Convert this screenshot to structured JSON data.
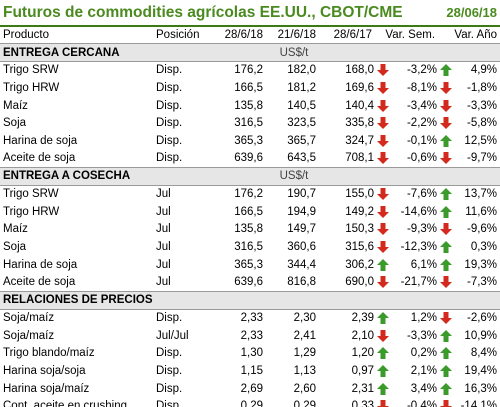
{
  "header": {
    "title": "Futuros de commodities agrícolas EE.UU., CBOT/CME",
    "date": "28/06/18"
  },
  "columns": {
    "product": "Producto",
    "position": "Posición",
    "d1": "28/6/18",
    "d2": "21/6/18",
    "d3": "28/6/17",
    "var_sem": "Var. Sem.",
    "var_ano": "Var. Año"
  },
  "colors": {
    "up": "#3a9a2a",
    "down": "#d42a1e",
    "title": "#4a8a1e"
  },
  "sections": [
    {
      "label": "ENTREGA CERCANA",
      "unit": "US$/t",
      "rows": [
        {
          "name": "Trigo SRW",
          "pos": "Disp.",
          "v1": "176,2",
          "v2": "182,0",
          "v3": "168,0",
          "a1": "down",
          "vs": "-3,2%",
          "a2": "up",
          "va": "4,9%"
        },
        {
          "name": "Trigo HRW",
          "pos": "Disp.",
          "v1": "166,5",
          "v2": "181,2",
          "v3": "169,6",
          "a1": "down",
          "vs": "-8,1%",
          "a2": "down",
          "va": "-1,8%"
        },
        {
          "name": "Maíz",
          "pos": "Disp.",
          "v1": "135,8",
          "v2": "140,5",
          "v3": "140,4",
          "a1": "down",
          "vs": "-3,4%",
          "a2": "down",
          "va": "-3,3%"
        },
        {
          "name": "Soja",
          "pos": "Disp.",
          "v1": "316,5",
          "v2": "323,5",
          "v3": "335,8",
          "a1": "down",
          "vs": "-2,2%",
          "a2": "down",
          "va": "-5,8%"
        },
        {
          "name": "Harina de soja",
          "pos": "Disp.",
          "v1": "365,3",
          "v2": "365,7",
          "v3": "324,7",
          "a1": "down",
          "vs": "-0,1%",
          "a2": "up",
          "va": "12,5%"
        },
        {
          "name": "Aceite de soja",
          "pos": "Disp.",
          "v1": "639,6",
          "v2": "643,5",
          "v3": "708,1",
          "a1": "down",
          "vs": "-0,6%",
          "a2": "down",
          "va": "-9,7%"
        }
      ]
    },
    {
      "label": "ENTREGA A COSECHA",
      "unit": "US$/t",
      "rows": [
        {
          "name": "Trigo SRW",
          "pos": "Jul",
          "v1": "176,2",
          "v2": "190,7",
          "v3": "155,0",
          "a1": "down",
          "vs": "-7,6%",
          "a2": "up",
          "va": "13,7%"
        },
        {
          "name": "Trigo HRW",
          "pos": "Jul",
          "v1": "166,5",
          "v2": "194,9",
          "v3": "149,2",
          "a1": "down",
          "vs": "-14,6%",
          "a2": "up",
          "va": "11,6%"
        },
        {
          "name": "Maíz",
          "pos": "Jul",
          "v1": "135,8",
          "v2": "149,7",
          "v3": "150,3",
          "a1": "down",
          "vs": "-9,3%",
          "a2": "down",
          "va": "-9,6%"
        },
        {
          "name": "Soja",
          "pos": "Jul",
          "v1": "316,5",
          "v2": "360,6",
          "v3": "315,6",
          "a1": "down",
          "vs": "-12,3%",
          "a2": "up",
          "va": "0,3%"
        },
        {
          "name": "Harina de soja",
          "pos": "Jul",
          "v1": "365,3",
          "v2": "344,4",
          "v3": "306,2",
          "a1": "up",
          "vs": "6,1%",
          "a2": "up",
          "va": "19,3%"
        },
        {
          "name": "Aceite de soja",
          "pos": "Jul",
          "v1": "639,6",
          "v2": "816,8",
          "v3": "690,0",
          "a1": "down",
          "vs": "-21,7%",
          "a2": "down",
          "va": "-7,3%"
        }
      ]
    },
    {
      "label": "RELACIONES DE PRECIOS",
      "unit": "",
      "rows": [
        {
          "name": "Soja/maíz",
          "pos": "Disp.",
          "v1": "2,33",
          "v2": "2,30",
          "v3": "2,39",
          "a1": "up",
          "vs": "1,2%",
          "a2": "down",
          "va": "-2,6%"
        },
        {
          "name": "Soja/maíz",
          "pos": "Jul/Jul",
          "v1": "2,33",
          "v2": "2,41",
          "v3": "2,10",
          "a1": "down",
          "vs": "-3,3%",
          "a2": "up",
          "va": "10,9%"
        },
        {
          "name": "Trigo blando/maíz",
          "pos": "Disp.",
          "v1": "1,30",
          "v2": "1,29",
          "v3": "1,20",
          "a1": "up",
          "vs": "0,2%",
          "a2": "up",
          "va": "8,4%"
        },
        {
          "name": "Harina soja/soja",
          "pos": "Disp.",
          "v1": "1,15",
          "v2": "1,13",
          "v3": "0,97",
          "a1": "up",
          "vs": "2,1%",
          "a2": "up",
          "va": "19,4%"
        },
        {
          "name": "Harina soja/maíz",
          "pos": "Disp.",
          "v1": "2,69",
          "v2": "2,60",
          "v3": "2,31",
          "a1": "up",
          "vs": "3,4%",
          "a2": "up",
          "va": "16,3%"
        },
        {
          "name": "Cont. aceite en crushing",
          "pos": "Disp.",
          "v1": "0,29",
          "v2": "0,29",
          "v3": "0,33",
          "a1": "down",
          "vs": "-0,4%",
          "a2": "down",
          "va": "-14,1%"
        }
      ]
    }
  ]
}
